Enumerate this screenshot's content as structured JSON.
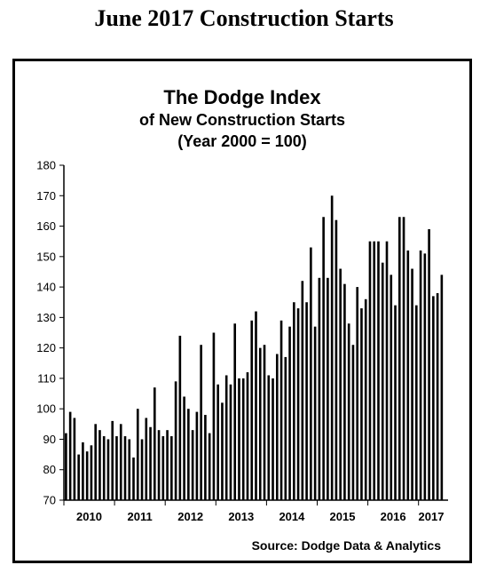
{
  "page_title": "June 2017 Construction Starts",
  "chart_data": {
    "type": "bar",
    "title": "The Dodge Index",
    "subtitle_lines": [
      "of New Construction Starts",
      "(Year 2000 = 100)"
    ],
    "source": "Source:  Dodge Data & Analytics",
    "ylim": [
      70,
      180
    ],
    "yticks": [
      "180",
      "170",
      "160",
      "150",
      "140",
      "130",
      "120",
      "110",
      "100",
      "90",
      "80",
      "70"
    ],
    "ytick_values": [
      180,
      170,
      160,
      150,
      140,
      130,
      120,
      110,
      100,
      90,
      80,
      70
    ],
    "year_labels": [
      "2010",
      "2011",
      "2012",
      "2013",
      "2014",
      "2015",
      "2016",
      "2017"
    ],
    "grid": false,
    "legend": "none",
    "bar_color": "#000000",
    "values": [
      92,
      99,
      97,
      85,
      89,
      86,
      88,
      95,
      93,
      91,
      90,
      96,
      91,
      95,
      91,
      90,
      84,
      100,
      90,
      97,
      94,
      107,
      93,
      91,
      93,
      91,
      109,
      124,
      104,
      100,
      93,
      99,
      121,
      98,
      92,
      125,
      108,
      102,
      111,
      108,
      128,
      110,
      110,
      112,
      129,
      132,
      120,
      121,
      111,
      110,
      118,
      129,
      117,
      127,
      135,
      133,
      142,
      135,
      153,
      127,
      143,
      163,
      143,
      170,
      162,
      146,
      141,
      128,
      121,
      140,
      133,
      136,
      155,
      155,
      155,
      148,
      155,
      144,
      134,
      163,
      163,
      152,
      146,
      134,
      152,
      151,
      159,
      137,
      138,
      144
    ]
  }
}
